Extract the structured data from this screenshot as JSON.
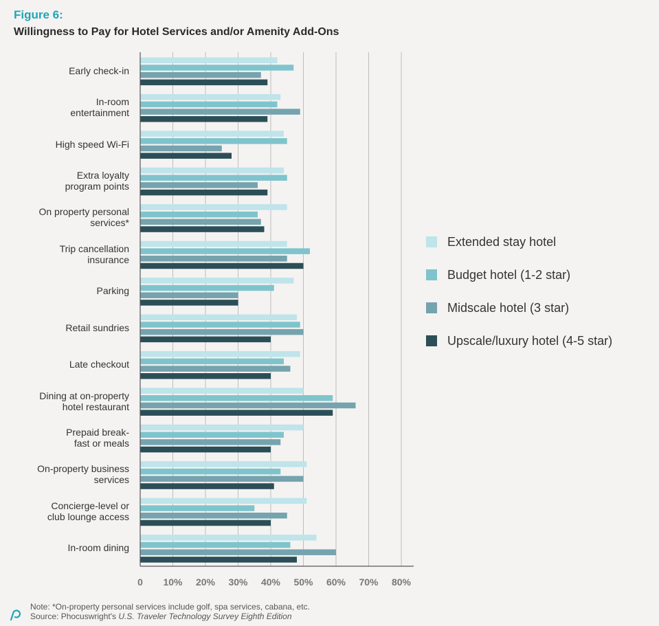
{
  "figure_label": "Figure 6:",
  "figure_title": "Willingness to Pay for Hotel Services and/or Amenity Add-Ons",
  "footer": {
    "note": "Note: *On-property personal services include golf, spa services, cabana, etc.",
    "source_prefix": "Source: Phocuswright's ",
    "source_title": "U.S. Traveler Technology Survey Eighth Edition"
  },
  "logo_icon": "phocuswright-logo-icon",
  "chart_data": {
    "type": "bar",
    "orientation": "horizontal",
    "categories": [
      [
        "Early check-in"
      ],
      [
        "In-room",
        "entertainment"
      ],
      [
        "High speed Wi-Fi"
      ],
      [
        "Extra loyalty",
        "program points"
      ],
      [
        "On property personal",
        "services*"
      ],
      [
        "Trip cancellation",
        "insurance"
      ],
      [
        "Parking"
      ],
      [
        "Retail sundries"
      ],
      [
        "Late checkout"
      ],
      [
        "Dining at on-property",
        "hotel restaurant"
      ],
      [
        "Prepaid break-",
        "fast or meals"
      ],
      [
        "On-property business",
        "services"
      ],
      [
        "Concierge-level or",
        "club lounge access"
      ],
      [
        "In-room dining"
      ]
    ],
    "series": [
      {
        "name": "Extended stay hotel",
        "color": "#bfe4ea",
        "values": [
          42,
          43,
          44,
          44,
          45,
          45,
          47,
          48,
          49,
          50,
          50,
          51,
          51,
          54
        ]
      },
      {
        "name": "Budget hotel (1-2 star)",
        "color": "#7fc4cc",
        "values": [
          47,
          42,
          45,
          45,
          36,
          52,
          41,
          49,
          44,
          59,
          44,
          43,
          35,
          46
        ]
      },
      {
        "name": "Midscale hotel (3 star)",
        "color": "#75a3ae",
        "values": [
          37,
          49,
          25,
          36,
          37,
          45,
          30,
          50,
          46,
          66,
          43,
          50,
          45,
          60
        ]
      },
      {
        "name": "Upscale/luxury hotel (4-5 star)",
        "color": "#2c4e57",
        "values": [
          39,
          39,
          28,
          39,
          38,
          50,
          30,
          40,
          40,
          59,
          40,
          41,
          40,
          48
        ]
      }
    ],
    "xlim": [
      0,
      80
    ],
    "xticks": [
      "0",
      "10%",
      "20%",
      "30%",
      "40%",
      "50%",
      "60%",
      "70%",
      "80%"
    ],
    "grid": true,
    "legend_position": "right"
  }
}
